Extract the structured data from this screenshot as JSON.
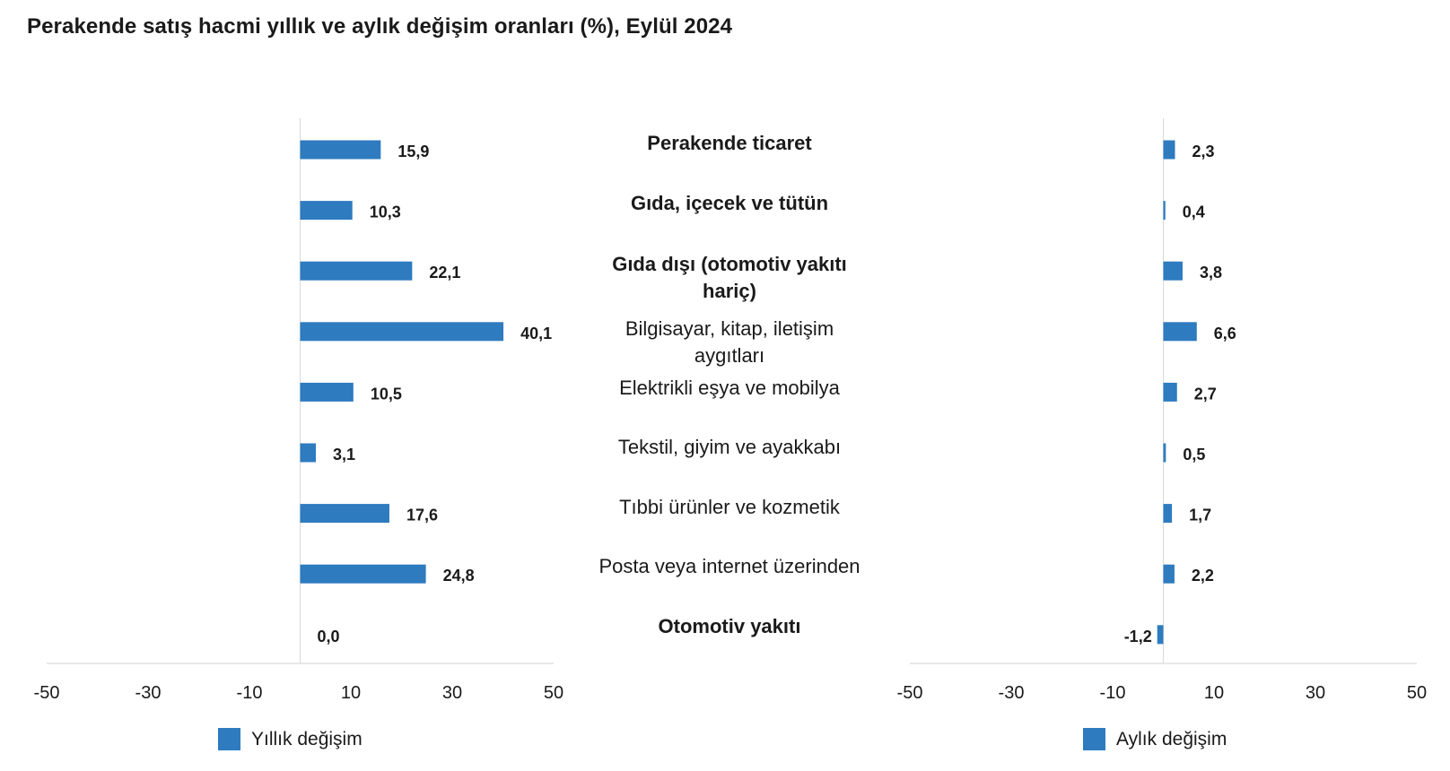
{
  "title": "Perakende satış hacmi yıllık ve aylık değişim oranları (%), Eylül 2024",
  "categories": [
    "Perakende ticaret",
    "Gıda, içecek ve tütün",
    "Gıda dışı (otomotiv yakıtı hariç)",
    "Bilgisayar, kitap, iletişim aygıtları",
    "Elektrikli eşya ve mobilya",
    "Tekstil, giyim ve ayakkabı",
    "Tıbbi ürünler ve kozmetik",
    "Posta veya internet üzerinden",
    "Otomotiv yakıtı"
  ],
  "category_bold": [
    true,
    true,
    true,
    false,
    false,
    false,
    false,
    false,
    true
  ],
  "colors": {
    "bar": "#2e7bbf",
    "axis": "#d9d9d9"
  },
  "chart_data": [
    {
      "type": "bar",
      "orientation": "horizontal",
      "title": "Perakende satış hacmi yıllık ve aylık değişim oranları (%), Eylül 2024",
      "series": [
        {
          "name": "Yıllık değişim",
          "values": [
            15.9,
            10.3,
            22.1,
            40.1,
            10.5,
            3.1,
            17.6,
            24.8,
            0.0
          ]
        }
      ],
      "labels": [
        "15,9",
        "10,3",
        "22,1",
        "40,1",
        "10,5",
        "3,1",
        "17,6",
        "24,8",
        "0,0"
      ],
      "xlim": [
        -50,
        50
      ],
      "ticks": [
        "-50",
        "-30",
        "-10",
        "10",
        "30",
        "50"
      ],
      "tick_values": [
        -50,
        -30,
        -10,
        10,
        30,
        50
      ],
      "legend": "Yıllık değişim"
    },
    {
      "type": "bar",
      "orientation": "horizontal",
      "series": [
        {
          "name": "Aylık değişim",
          "values": [
            2.3,
            0.4,
            3.8,
            6.6,
            2.7,
            0.5,
            1.7,
            2.2,
            -1.2
          ]
        }
      ],
      "labels": [
        "2,3",
        "0,4",
        "3,8",
        "6,6",
        "2,7",
        "0,5",
        "1,7",
        "2,2",
        "-1,2"
      ],
      "xlim": [
        -50,
        50
      ],
      "ticks": [
        "-50",
        "-30",
        "-10",
        "10",
        "30",
        "50"
      ],
      "tick_values": [
        -50,
        -30,
        -10,
        10,
        30,
        50
      ],
      "legend": "Aylık değişim"
    }
  ]
}
